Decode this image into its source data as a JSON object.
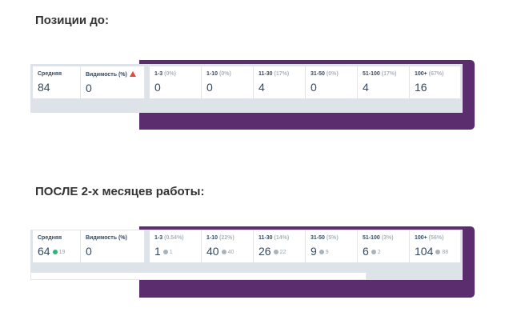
{
  "sections": [
    {
      "title": "Позиции до:",
      "cells": [
        {
          "label": "Средняя",
          "value": 84
        },
        {
          "label": "Видимость (%)",
          "value": 0,
          "warning": true
        },
        {
          "label": "1-3",
          "share": "(0%)",
          "value": 0
        },
        {
          "label": "1-10",
          "share": "(0%)",
          "value": 0
        },
        {
          "label": "11-30",
          "share": "(17%)",
          "value": 4
        },
        {
          "label": "31-50",
          "share": "(0%)",
          "value": 0
        },
        {
          "label": "51-100",
          "share": "(17%)",
          "value": 4
        },
        {
          "label": "100+",
          "share": "(67%)",
          "value": 16
        }
      ]
    },
    {
      "title": "ПОСЛЕ 2-х месяцев работы:",
      "cells": [
        {
          "label": "Средняя",
          "value": 64,
          "delta": 19,
          "delta_color": "#2bb673"
        },
        {
          "label": "Видимость (%)",
          "value": 0
        },
        {
          "label": "1-3",
          "share": "(0.54%)",
          "value": 1,
          "delta": 1,
          "delta_color": "#a9b3bc"
        },
        {
          "label": "1-10",
          "share": "(22%)",
          "value": 40,
          "delta": 40,
          "delta_color": "#a9b3bc"
        },
        {
          "label": "11-30",
          "share": "(14%)",
          "value": 26,
          "delta": 22,
          "delta_color": "#a9b3bc"
        },
        {
          "label": "31-50",
          "share": "(5%)",
          "value": 9,
          "delta": 9,
          "delta_color": "#a9b3bc"
        },
        {
          "label": "51-100",
          "share": "(3%)",
          "value": 6,
          "delta": 2,
          "delta_color": "#a9b3bc"
        },
        {
          "label": "100+",
          "share": "(56%)",
          "value": 104,
          "delta": 88,
          "delta_color": "#a9b3bc"
        }
      ]
    }
  ]
}
